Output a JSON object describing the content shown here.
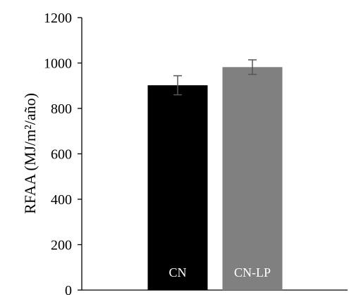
{
  "chart_data": {
    "type": "bar",
    "categories": [
      "CN",
      "CN-LP"
    ],
    "values": [
      902,
      982
    ],
    "error": [
      42,
      32
    ],
    "colors": [
      "#000000",
      "#808080"
    ],
    "category_label_color": "#ffffff",
    "error_bar_color": "#555555",
    "title": "",
    "xlabel": "",
    "ylabel": "RFAA (MJ/m²/año)",
    "ylim": [
      0,
      1200
    ],
    "yticks": [
      0,
      200,
      400,
      600,
      800,
      1000,
      1200
    ],
    "grid": false,
    "legend": "none"
  }
}
